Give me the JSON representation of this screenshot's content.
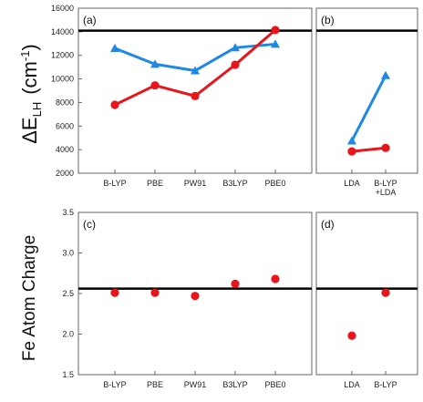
{
  "chart_data": [
    {
      "type": "line",
      "panel": "(a)",
      "ylabel": "ΔE",
      "ylabel_sub": "LH",
      "ylabel_unit": "(cm",
      "ylabel_unit_sup": "-1",
      "ylabel_unit_close": ")",
      "ylim": [
        2000,
        16000
      ],
      "yticks": [
        "2000",
        "4000",
        "6000",
        "8000",
        "10000",
        "12000",
        "14000",
        "16000"
      ],
      "categories": [
        "B-LYP",
        "PBE",
        "PW91",
        "B3LYP",
        "PBE0"
      ],
      "reference_line": 14100,
      "series": [
        {
          "color": "#1e88e5",
          "marker": "triangle",
          "values": [
            12600,
            11250,
            10700,
            12650,
            12950
          ]
        },
        {
          "color": "#e8151b",
          "marker": "circle",
          "values": [
            7800,
            9450,
            8550,
            11200,
            14150
          ]
        }
      ]
    },
    {
      "type": "line",
      "panel": "(b)",
      "ylim": [
        2000,
        16000
      ],
      "categories": [
        "LDA",
        "B-LYP\n+LDA"
      ],
      "reference_line": 14100,
      "series": [
        {
          "color": "#1e88e5",
          "marker": "triangle",
          "values": [
            4750,
            10300
          ]
        },
        {
          "color": "#e8151b",
          "marker": "circle",
          "values": [
            3850,
            4150
          ]
        }
      ]
    },
    {
      "type": "scatter",
      "panel": "(c)",
      "ylabel": "Fe Atom Charge",
      "ylim": [
        1.5,
        3.5
      ],
      "yticks": [
        "1.5",
        "2.0",
        "2.5",
        "3.0",
        "3.5"
      ],
      "categories": [
        "B-LYP",
        "PBE",
        "PW91",
        "B3LYP",
        "PBE0"
      ],
      "reference_line": 2.56,
      "series": [
        {
          "color": "#e8151b",
          "marker": "circle",
          "values": [
            2.51,
            2.51,
            2.47,
            2.62,
            2.68
          ]
        }
      ]
    },
    {
      "type": "scatter",
      "panel": "(d)",
      "ylim": [
        1.5,
        3.5
      ],
      "categories": [
        "LDA",
        "B-LYP"
      ],
      "reference_line": 2.56,
      "series": [
        {
          "color": "#e8151b",
          "marker": "circle",
          "values": [
            1.98,
            2.51
          ]
        }
      ]
    }
  ]
}
